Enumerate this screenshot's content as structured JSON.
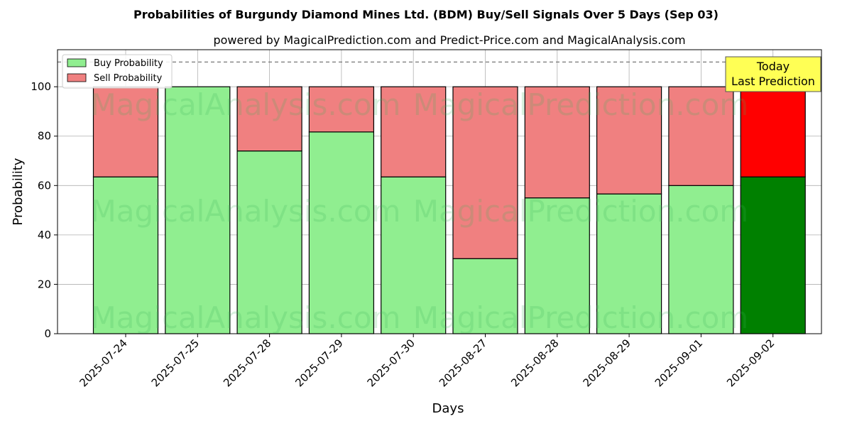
{
  "chart_data": {
    "type": "bar",
    "stacked": true,
    "title": "Probabilities of Burgundy Diamond Mines Ltd. (BDM) Buy/Sell Signals Over 5 Days (Sep 03)",
    "subtitle": "powered by MagicalPrediction.com and Predict-Price.com and MagicalAnalysis.com",
    "xlabel": "Days",
    "ylabel": "Probability",
    "ylim": [
      0,
      115
    ],
    "yticks": [
      0,
      20,
      40,
      60,
      80,
      100
    ],
    "grid": true,
    "legend_placement": "top-left",
    "reference_line": 110,
    "categories": [
      "2025-07-24",
      "2025-07-25",
      "2025-07-28",
      "2025-07-29",
      "2025-07-30",
      "2025-08-27",
      "2025-08-28",
      "2025-08-29",
      "2025-09-01",
      "2025-09-02"
    ],
    "series": [
      {
        "name": "Buy Probability",
        "color": "#90EE90",
        "highlight_color": "#008000",
        "values": [
          63.5,
          100,
          74,
          81.7,
          63.5,
          30.4,
          55,
          56.6,
          60,
          63.5
        ]
      },
      {
        "name": "Sell Probability",
        "color": "#F08080",
        "highlight_color": "#FF0000",
        "values": [
          36.5,
          0,
          26,
          18.3,
          36.5,
          69.6,
          45,
          43.4,
          40,
          36.5
        ]
      }
    ],
    "highlight_index": 9,
    "annotation": {
      "line1": "Today",
      "line2": "Last Prediction",
      "color": "#FFFF55"
    },
    "watermarks": [
      "MagicalAnalysis.com",
      "MagicalPrediction.com"
    ]
  }
}
